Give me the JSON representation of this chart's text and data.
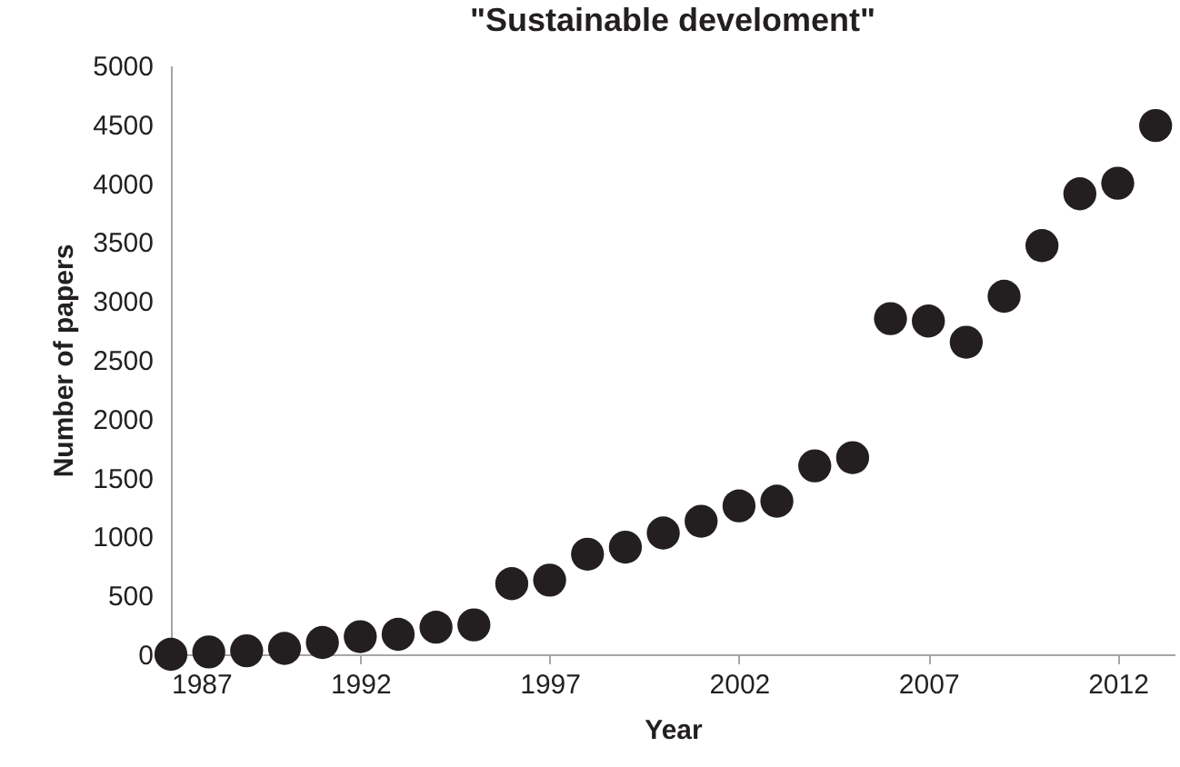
{
  "chart_data": {
    "type": "scatter",
    "title": "\"Sustainable develoment\"",
    "xlabel": "Year",
    "ylabel": "Number of papers",
    "x": [
      1987,
      1988,
      1989,
      1990,
      1991,
      1992,
      1993,
      1994,
      1995,
      1996,
      1997,
      1998,
      1999,
      2000,
      2001,
      2002,
      2003,
      2004,
      2005,
      2006,
      2007,
      2008,
      2009,
      2010,
      2011,
      2012,
      2013
    ],
    "series": [
      {
        "color": "#231f20",
        "values": [
          0,
          20,
          30,
          50,
          100,
          150,
          170,
          230,
          250,
          600,
          630,
          850,
          910,
          1030,
          1130,
          1260,
          1300,
          1600,
          1670,
          2850,
          2830,
          2650,
          3040,
          3470,
          3910,
          4000,
          4490
        ]
      }
    ],
    "xlim": [
      1987,
      2013.5
    ],
    "xticks": [
      1987,
      1992,
      1997,
      2002,
      2007,
      2012
    ],
    "ylim": [
      0,
      5000
    ],
    "yticks": [
      0,
      500,
      1000,
      1500,
      2000,
      2500,
      3000,
      3500,
      4000,
      4500,
      5000
    ],
    "grid": false,
    "marker": "circle"
  }
}
